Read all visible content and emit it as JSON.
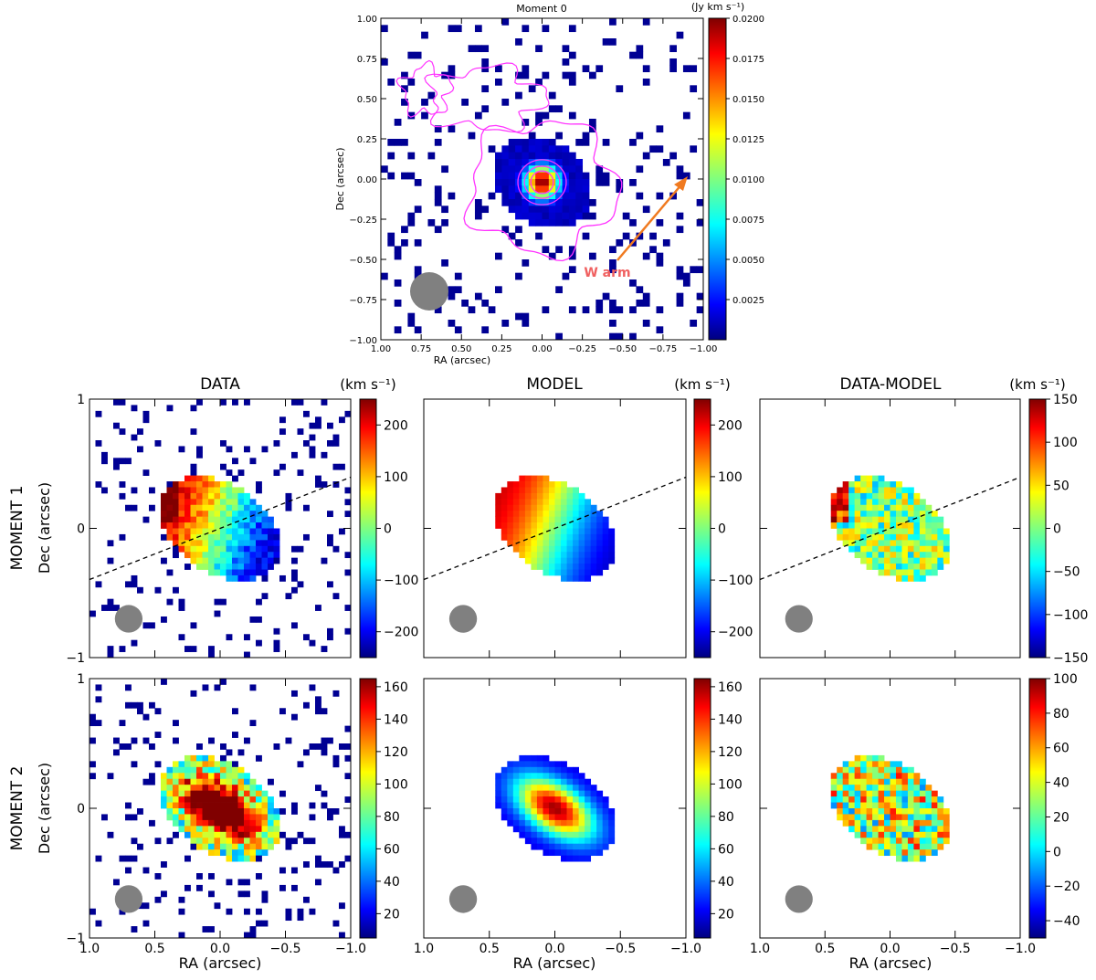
{
  "chart_data": {
    "type": "heatmap",
    "top": {
      "title": "Moment 0",
      "unit": "(Jy km s⁻¹)",
      "xlabel": "RA (arcsec)",
      "ylabel": "Dec (arcsec)",
      "xlim": [
        1.0,
        -1.0
      ],
      "ylim": [
        -1.0,
        1.0
      ],
      "xticks": [
        "1.00",
        "0.75",
        "0.50",
        "0.25",
        "0.00",
        "−0.25",
        "−0.50",
        "−0.75",
        "−1.00"
      ],
      "yticks": [
        "1.00",
        "0.75",
        "0.50",
        "0.25",
        "0.00",
        "−0.25",
        "−0.50",
        "−0.75",
        "−1.00"
      ],
      "colorbar_range": [
        0,
        0.02
      ],
      "colorbar_ticks": [
        "0.0200",
        "0.0175",
        "0.0150",
        "0.0125",
        "0.0100",
        "0.0075",
        "0.0050",
        "0.0025"
      ],
      "annotation": "W arm",
      "peak": {
        "ra": 0.0,
        "dec": -0.02,
        "value": 0.02
      }
    },
    "columns": [
      "DATA",
      "MODEL",
      "DATA-MODEL"
    ],
    "rows": [
      {
        "label": "MOMENT  1",
        "unit": "(km s⁻¹)",
        "colorbars": [
          {
            "range": [
              -250,
              250
            ],
            "ticks": [
              "200",
              "100",
              "0",
              "−100",
              "−200"
            ]
          },
          {
            "range": [
              -250,
              250
            ],
            "ticks": [
              "200",
              "100",
              "0",
              "−100",
              "−200"
            ]
          },
          {
            "range": [
              -150,
              150
            ],
            "ticks": [
              "150",
              "100",
              "50",
              "0",
              "−50",
              "−100",
              "−150"
            ]
          }
        ]
      },
      {
        "label": "MOMENT  2",
        "unit": "",
        "colorbars": [
          {
            "range": [
              5,
              165
            ],
            "ticks": [
              "160",
              "140",
              "120",
              "100",
              "80",
              "60",
              "40",
              "20"
            ]
          },
          {
            "range": [
              5,
              165
            ],
            "ticks": [
              "160",
              "140",
              "120",
              "100",
              "80",
              "60",
              "40",
              "20"
            ]
          },
          {
            "range": [
              -50,
              100
            ],
            "ticks": [
              "100",
              "80",
              "60",
              "40",
              "20",
              "0",
              "−20",
              "−40"
            ]
          }
        ]
      }
    ],
    "panel_xticks": [
      "1.0",
      "0.5",
      "0.0",
      "−0.5",
      "−1.0"
    ],
    "panel_yticks": [
      "1",
      "0",
      "−1"
    ],
    "panel_xlabel": "RA (arcsec)",
    "panel_ylabel": "Dec (arcsec)",
    "position_angle_line": {
      "slope": 0.36
    },
    "beam": {
      "ra": 0.7,
      "dec": -0.7,
      "diameter_arcsec": 0.23
    }
  }
}
